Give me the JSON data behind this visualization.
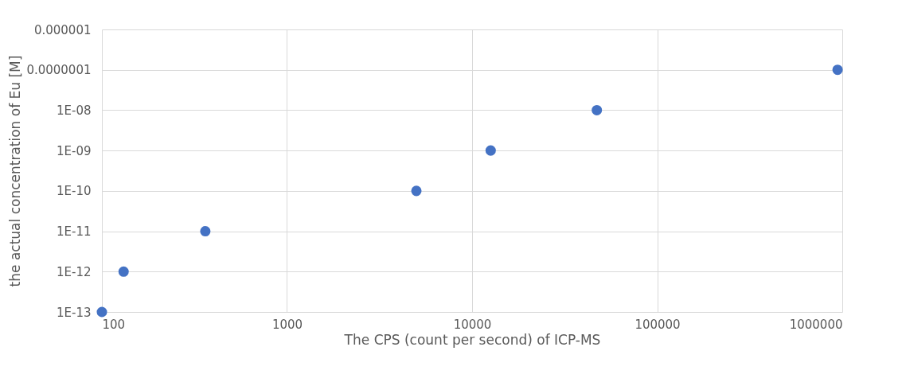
{
  "chart_data": {
    "type": "scatter",
    "xlabel": "The CPS (count per second) of ICP-MS",
    "ylabel": "the actual concentration of Eu [M]",
    "x": [
      100,
      131,
      362,
      5000,
      12600,
      47200,
      943000
    ],
    "series": [
      {
        "color": "#4472c4",
        "values": [
          1e-13,
          1e-12,
          1e-11,
          1e-10,
          1e-09,
          1e-08,
          1e-07
        ]
      }
    ],
    "log": "xy",
    "grid": true,
    "marker": "circle",
    "legend": false,
    "xlim": [
      100,
      1000000
    ],
    "xticks": [
      100,
      1000,
      10000,
      100000,
      1000000
    ],
    "ylim": [
      1e-13,
      1e-06
    ],
    "yticks": [
      {
        "value": 1e-13,
        "label": "1E-13"
      },
      {
        "value": 1e-12,
        "label": "1E-12"
      },
      {
        "value": 1e-11,
        "label": "1E-11"
      },
      {
        "value": 1e-10,
        "label": "1E-10"
      },
      {
        "value": 1e-09,
        "label": "1E-09"
      },
      {
        "value": 1e-08,
        "label": "1E-08"
      },
      {
        "value": 1e-07,
        "label": "0.0000001"
      },
      {
        "value": 1e-06,
        "label": "0.000001"
      }
    ]
  }
}
